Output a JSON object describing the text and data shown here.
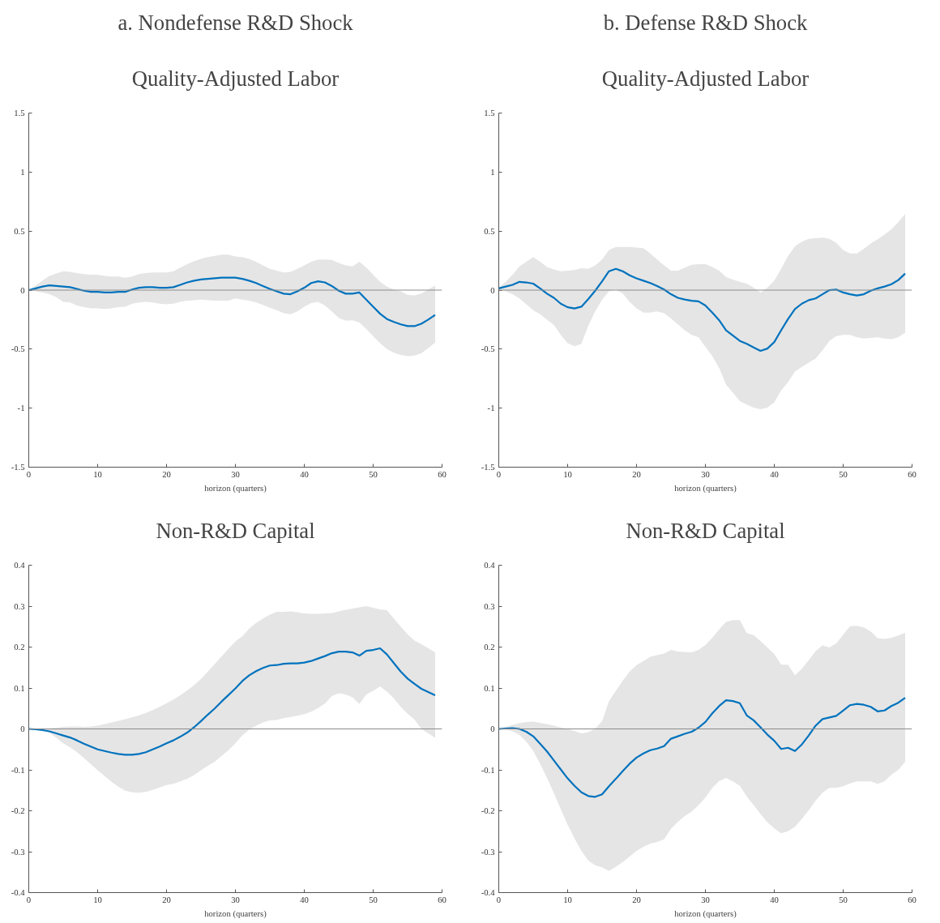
{
  "chart_data": [
    {
      "type": "line",
      "title": "a. Nondefense R&D Shock",
      "subtitle": "Quality-Adjusted Labor",
      "xlabel": "horizon (quarters)",
      "xlim": [
        0,
        60
      ],
      "xticks": [
        0,
        10,
        20,
        30,
        40,
        50,
        60
      ],
      "ylim": [
        -1.5,
        1.5
      ],
      "yticks": [
        -1.5,
        -1,
        -0.5,
        0,
        0.5,
        1,
        1.5
      ],
      "grid": false,
      "x": [
        0,
        1,
        2,
        3,
        4,
        5,
        6,
        7,
        8,
        9,
        10,
        11,
        12,
        13,
        14,
        15,
        16,
        17,
        18,
        19,
        20,
        21,
        22,
        23,
        24,
        25,
        26,
        27,
        28,
        29,
        30,
        31,
        32,
        33,
        34,
        35,
        36,
        37,
        38,
        39,
        40,
        41,
        42,
        43,
        44,
        45,
        46,
        47,
        48,
        49,
        50,
        51,
        52,
        53,
        54,
        55,
        56,
        57,
        58,
        59
      ],
      "ref_lines": [
        {
          "axis": "y",
          "value": 0,
          "color": "#8c8c8c"
        }
      ],
      "series": [
        {
          "color": "#0072bd",
          "values": [
            0,
            0.015,
            0.03,
            0.04,
            0.035,
            0.03,
            0.025,
            0.01,
            -0.005,
            -0.015,
            -0.015,
            -0.02,
            -0.02,
            -0.015,
            -0.015,
            0.005,
            0.02,
            0.025,
            0.025,
            0.02,
            0.02,
            0.025,
            0.045,
            0.065,
            0.08,
            0.09,
            0.095,
            0.1,
            0.105,
            0.105,
            0.105,
            0.095,
            0.08,
            0.06,
            0.035,
            0.01,
            -0.01,
            -0.03,
            -0.035,
            -0.01,
            0.02,
            0.06,
            0.075,
            0.065,
            0.035,
            -0.005,
            -0.03,
            -0.03,
            -0.02,
            -0.08,
            -0.14,
            -0.2,
            -0.245,
            -0.27,
            -0.29,
            -0.305,
            -0.305,
            -0.285,
            -0.25,
            -0.21
          ],
          "upper": [
            0,
            0.04,
            0.08,
            0.12,
            0.14,
            0.16,
            0.155,
            0.145,
            0.135,
            0.13,
            0.13,
            0.12,
            0.115,
            0.115,
            0.105,
            0.115,
            0.135,
            0.145,
            0.15,
            0.15,
            0.15,
            0.16,
            0.19,
            0.22,
            0.245,
            0.265,
            0.28,
            0.29,
            0.3,
            0.3,
            0.285,
            0.28,
            0.265,
            0.24,
            0.21,
            0.18,
            0.165,
            0.15,
            0.155,
            0.18,
            0.21,
            0.24,
            0.26,
            0.26,
            0.255,
            0.23,
            0.21,
            0.2,
            0.24,
            0.19,
            0.13,
            0.07,
            0.03,
            0.005,
            -0.01,
            -0.04,
            -0.045,
            -0.03,
            0.005,
            0.04
          ],
          "lower": [
            0,
            -0.01,
            -0.02,
            -0.035,
            -0.06,
            -0.1,
            -0.105,
            -0.13,
            -0.145,
            -0.155,
            -0.155,
            -0.16,
            -0.155,
            -0.145,
            -0.14,
            -0.115,
            -0.105,
            -0.1,
            -0.105,
            -0.115,
            -0.12,
            -0.115,
            -0.1,
            -0.09,
            -0.085,
            -0.08,
            -0.085,
            -0.09,
            -0.09,
            -0.09,
            -0.07,
            -0.08,
            -0.09,
            -0.105,
            -0.125,
            -0.15,
            -0.17,
            -0.195,
            -0.205,
            -0.18,
            -0.14,
            -0.11,
            -0.1,
            -0.13,
            -0.18,
            -0.235,
            -0.26,
            -0.255,
            -0.275,
            -0.33,
            -0.39,
            -0.45,
            -0.5,
            -0.53,
            -0.55,
            -0.56,
            -0.555,
            -0.535,
            -0.49,
            -0.445
          ]
        }
      ]
    },
    {
      "type": "line",
      "title": "b. Defense R&D Shock",
      "subtitle": "Quality-Adjusted Labor",
      "xlabel": "horizon (quarters)",
      "xlim": [
        0,
        60
      ],
      "xticks": [
        0,
        10,
        20,
        30,
        40,
        50,
        60
      ],
      "ylim": [
        -1.5,
        1.5
      ],
      "yticks": [
        -1.5,
        -1,
        -0.5,
        0,
        0.5,
        1,
        1.5
      ],
      "grid": false,
      "x": [
        0,
        1,
        2,
        3,
        4,
        5,
        6,
        7,
        8,
        9,
        10,
        11,
        12,
        13,
        14,
        15,
        16,
        17,
        18,
        19,
        20,
        21,
        22,
        23,
        24,
        25,
        26,
        27,
        28,
        29,
        30,
        31,
        32,
        33,
        34,
        35,
        36,
        37,
        38,
        39,
        40,
        41,
        42,
        43,
        44,
        45,
        46,
        47,
        48,
        49,
        50,
        51,
        52,
        53,
        54,
        55,
        56,
        57,
        58,
        59
      ],
      "ref_lines": [
        {
          "axis": "y",
          "value": 0,
          "color": "#8c8c8c"
        }
      ],
      "series": [
        {
          "color": "#0072bd",
          "values": [
            0.015,
            0.03,
            0.045,
            0.07,
            0.065,
            0.055,
            0.015,
            -0.03,
            -0.065,
            -0.115,
            -0.145,
            -0.155,
            -0.14,
            -0.075,
            -0.005,
            0.075,
            0.16,
            0.18,
            0.16,
            0.125,
            0.1,
            0.08,
            0.06,
            0.035,
            0.005,
            -0.035,
            -0.065,
            -0.08,
            -0.09,
            -0.095,
            -0.13,
            -0.19,
            -0.255,
            -0.34,
            -0.385,
            -0.43,
            -0.455,
            -0.485,
            -0.515,
            -0.495,
            -0.44,
            -0.34,
            -0.245,
            -0.16,
            -0.115,
            -0.085,
            -0.07,
            -0.035,
            0,
            0.005,
            -0.02,
            -0.035,
            -0.045,
            -0.035,
            -0.005,
            0.015,
            0.03,
            0.05,
            0.085,
            0.14
          ],
          "upper": [
            0.02,
            0.07,
            0.13,
            0.2,
            0.24,
            0.28,
            0.24,
            0.195,
            0.175,
            0.16,
            0.165,
            0.17,
            0.185,
            0.18,
            0.21,
            0.26,
            0.34,
            0.365,
            0.365,
            0.365,
            0.36,
            0.355,
            0.31,
            0.26,
            0.21,
            0.165,
            0.165,
            0.19,
            0.215,
            0.22,
            0.22,
            0.195,
            0.165,
            0.11,
            0.09,
            0.07,
            0.055,
            0.02,
            -0.02,
            0.02,
            0.08,
            0.18,
            0.29,
            0.37,
            0.41,
            0.435,
            0.44,
            0.445,
            0.435,
            0.4,
            0.34,
            0.31,
            0.31,
            0.35,
            0.395,
            0.43,
            0.47,
            0.515,
            0.575,
            0.645
          ],
          "lower": [
            0.01,
            -0.01,
            -0.035,
            -0.07,
            -0.12,
            -0.17,
            -0.205,
            -0.25,
            -0.295,
            -0.38,
            -0.45,
            -0.475,
            -0.455,
            -0.3,
            -0.18,
            -0.08,
            -0.01,
            0.005,
            -0.03,
            -0.1,
            -0.155,
            -0.19,
            -0.19,
            -0.18,
            -0.195,
            -0.24,
            -0.29,
            -0.34,
            -0.38,
            -0.4,
            -0.48,
            -0.56,
            -0.66,
            -0.8,
            -0.87,
            -0.94,
            -0.97,
            -0.995,
            -1.01,
            -0.995,
            -0.95,
            -0.85,
            -0.78,
            -0.69,
            -0.65,
            -0.615,
            -0.58,
            -0.51,
            -0.43,
            -0.39,
            -0.38,
            -0.38,
            -0.4,
            -0.41,
            -0.405,
            -0.4,
            -0.41,
            -0.415,
            -0.4,
            -0.36
          ]
        }
      ]
    },
    {
      "type": "line",
      "title": "Non-R&D Capital",
      "xlabel": "horizon (quarters)",
      "xlim": [
        0,
        60
      ],
      "xticks": [
        0,
        10,
        20,
        30,
        40,
        50,
        60
      ],
      "ylim": [
        -0.4,
        0.4
      ],
      "yticks": [
        -0.4,
        -0.3,
        -0.2,
        -0.1,
        0,
        0.1,
        0.2,
        0.3,
        0.4
      ],
      "grid": false,
      "x": [
        0,
        1,
        2,
        3,
        4,
        5,
        6,
        7,
        8,
        9,
        10,
        11,
        12,
        13,
        14,
        15,
        16,
        17,
        18,
        19,
        20,
        21,
        22,
        23,
        24,
        25,
        26,
        27,
        28,
        29,
        30,
        31,
        32,
        33,
        34,
        35,
        36,
        37,
        38,
        39,
        40,
        41,
        42,
        43,
        44,
        45,
        46,
        47,
        48,
        49,
        50,
        51,
        52,
        53,
        54,
        55,
        56,
        57,
        58,
        59
      ],
      "ref_lines": [
        {
          "axis": "y",
          "value": 0,
          "color": "#8c8c8c"
        }
      ],
      "series": [
        {
          "color": "#0072bd",
          "values": [
            0,
            -0.001,
            -0.003,
            -0.006,
            -0.011,
            -0.016,
            -0.021,
            -0.028,
            -0.036,
            -0.043,
            -0.05,
            -0.054,
            -0.058,
            -0.061,
            -0.063,
            -0.063,
            -0.061,
            -0.057,
            -0.05,
            -0.043,
            -0.035,
            -0.028,
            -0.019,
            -0.009,
            0.004,
            0.019,
            0.035,
            0.05,
            0.067,
            0.083,
            0.099,
            0.117,
            0.131,
            0.141,
            0.149,
            0.155,
            0.156,
            0.159,
            0.16,
            0.16,
            0.162,
            0.166,
            0.172,
            0.178,
            0.185,
            0.189,
            0.189,
            0.187,
            0.179,
            0.191,
            0.193,
            0.197,
            0.182,
            0.161,
            0.14,
            0.123,
            0.11,
            0.098,
            0.09,
            0.082
          ],
          "upper": [
            0,
            0,
            0,
            0.001,
            0.003,
            0.005,
            0.006,
            0.006,
            0.005,
            0.006,
            0.008,
            0.012,
            0.016,
            0.02,
            0.024,
            0.028,
            0.033,
            0.039,
            0.046,
            0.054,
            0.063,
            0.072,
            0.082,
            0.094,
            0.107,
            0.122,
            0.14,
            0.159,
            0.177,
            0.196,
            0.214,
            0.226,
            0.245,
            0.259,
            0.27,
            0.279,
            0.286,
            0.286,
            0.287,
            0.285,
            0.282,
            0.281,
            0.281,
            0.282,
            0.283,
            0.287,
            0.291,
            0.294,
            0.297,
            0.3,
            0.296,
            0.292,
            0.29,
            0.27,
            0.25,
            0.231,
            0.216,
            0.207,
            0.197,
            0.187
          ],
          "lower": [
            0,
            -0.001,
            -0.003,
            -0.009,
            -0.022,
            -0.035,
            -0.045,
            -0.057,
            -0.071,
            -0.086,
            -0.101,
            -0.115,
            -0.129,
            -0.141,
            -0.151,
            -0.155,
            -0.156,
            -0.154,
            -0.149,
            -0.143,
            -0.137,
            -0.134,
            -0.128,
            -0.122,
            -0.113,
            -0.101,
            -0.09,
            -0.08,
            -0.066,
            -0.052,
            -0.035,
            -0.016,
            -0.002,
            0.008,
            0.016,
            0.021,
            0.022,
            0.026,
            0.029,
            0.032,
            0.036,
            0.042,
            0.051,
            0.062,
            0.08,
            0.087,
            0.084,
            0.077,
            0.061,
            0.084,
            0.093,
            0.104,
            0.091,
            0.075,
            0.054,
            0.037,
            0.023,
            0,
            -0.011,
            -0.022
          ]
        }
      ]
    },
    {
      "type": "line",
      "title": "Non-R&D Capital",
      "xlabel": "horizon (quarters)",
      "xlim": [
        0,
        60
      ],
      "xticks": [
        0,
        10,
        20,
        30,
        40,
        50,
        60
      ],
      "ylim": [
        -0.4,
        0.4
      ],
      "yticks": [
        -0.4,
        -0.3,
        -0.2,
        -0.1,
        0,
        0.1,
        0.2,
        0.3,
        0.4
      ],
      "grid": false,
      "x": [
        0,
        1,
        2,
        3,
        4,
        5,
        6,
        7,
        8,
        9,
        10,
        11,
        12,
        13,
        14,
        15,
        16,
        17,
        18,
        19,
        20,
        21,
        22,
        23,
        24,
        25,
        26,
        27,
        28,
        29,
        30,
        31,
        32,
        33,
        34,
        35,
        36,
        37,
        38,
        39,
        40,
        41,
        42,
        43,
        44,
        45,
        46,
        47,
        48,
        49,
        50,
        51,
        52,
        53,
        54,
        55,
        56,
        57,
        58,
        59
      ],
      "ref_lines": [
        {
          "axis": "y",
          "value": 0,
          "color": "#8c8c8c"
        }
      ],
      "series": [
        {
          "color": "#0072bd",
          "values": [
            0,
            0.001,
            0.002,
            0,
            -0.007,
            -0.018,
            -0.036,
            -0.055,
            -0.077,
            -0.099,
            -0.121,
            -0.139,
            -0.155,
            -0.164,
            -0.166,
            -0.16,
            -0.14,
            -0.122,
            -0.103,
            -0.085,
            -0.07,
            -0.06,
            -0.052,
            -0.048,
            -0.042,
            -0.024,
            -0.018,
            -0.012,
            -0.007,
            0.003,
            0.017,
            0.038,
            0.056,
            0.07,
            0.068,
            0.063,
            0.033,
            0.021,
            0.004,
            -0.014,
            -0.029,
            -0.049,
            -0.046,
            -0.054,
            -0.038,
            -0.016,
            0.008,
            0.024,
            0.028,
            0.032,
            0.045,
            0.058,
            0.061,
            0.059,
            0.054,
            0.043,
            0.045,
            0.056,
            0.064,
            0.076
          ],
          "upper": [
            0,
            0.005,
            0.01,
            0.014,
            0.017,
            0.018,
            0.015,
            0.012,
            0.008,
            0.004,
            0,
            -0.005,
            -0.011,
            -0.008,
            0.001,
            0.019,
            0.068,
            0.093,
            0.118,
            0.14,
            0.156,
            0.166,
            0.176,
            0.18,
            0.184,
            0.193,
            0.189,
            0.188,
            0.187,
            0.193,
            0.205,
            0.223,
            0.243,
            0.262,
            0.266,
            0.266,
            0.234,
            0.229,
            0.215,
            0.199,
            0.183,
            0.157,
            0.157,
            0.131,
            0.147,
            0.168,
            0.19,
            0.204,
            0.199,
            0.209,
            0.23,
            0.251,
            0.252,
            0.248,
            0.238,
            0.222,
            0.22,
            0.223,
            0.228,
            0.235
          ],
          "lower": [
            0,
            -0.002,
            -0.006,
            -0.015,
            -0.031,
            -0.054,
            -0.085,
            -0.12,
            -0.157,
            -0.196,
            -0.234,
            -0.268,
            -0.298,
            -0.322,
            -0.333,
            -0.338,
            -0.347,
            -0.337,
            -0.325,
            -0.312,
            -0.298,
            -0.288,
            -0.28,
            -0.276,
            -0.27,
            -0.244,
            -0.227,
            -0.213,
            -0.202,
            -0.186,
            -0.168,
            -0.144,
            -0.127,
            -0.12,
            -0.128,
            -0.139,
            -0.165,
            -0.186,
            -0.208,
            -0.228,
            -0.243,
            -0.255,
            -0.25,
            -0.239,
            -0.22,
            -0.199,
            -0.175,
            -0.156,
            -0.144,
            -0.144,
            -0.14,
            -0.133,
            -0.128,
            -0.128,
            -0.128,
            -0.134,
            -0.128,
            -0.112,
            -0.1,
            -0.08
          ]
        }
      ]
    }
  ]
}
